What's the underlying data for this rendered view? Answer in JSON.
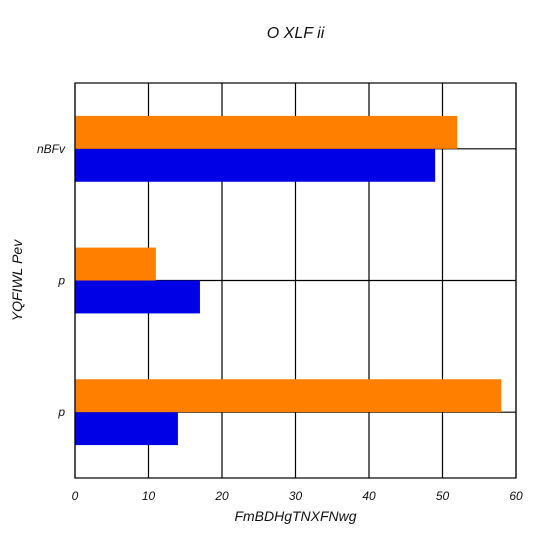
{
  "chart_data": {
    "type": "bar",
    "orientation": "horizontal",
    "title": "O XLF ii",
    "xlabel": "FmBDHgTNXFNwg",
    "ylabel": "YQFIWL Pev",
    "categories": [
      "p",
      "p",
      "nBFv"
    ],
    "series": [
      {
        "color": "#0000e6",
        "values": [
          14,
          17,
          49
        ]
      },
      {
        "color": "#ff7f00",
        "values": [
          58,
          11,
          52
        ]
      }
    ],
    "xlim": [
      0,
      60
    ],
    "xticks": [
      0,
      10,
      20,
      30,
      40,
      50,
      60
    ],
    "grid": true,
    "legend": "none"
  }
}
